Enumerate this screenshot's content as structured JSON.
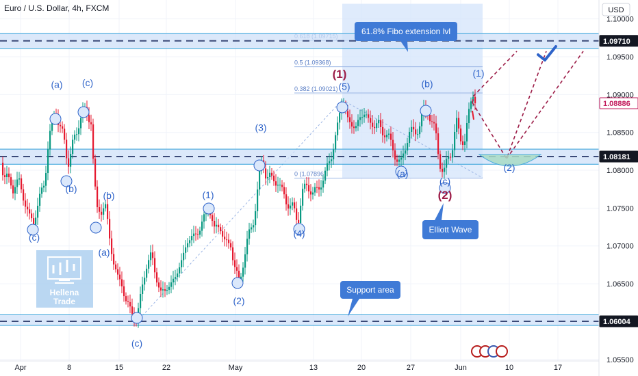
{
  "header": {
    "title": "Euro / U.S. Dollar, 4h, FXCM",
    "currency_button": "USD"
  },
  "colors": {
    "up": "#089981",
    "down": "#e5192f",
    "zone_fill": "#cfe0f8",
    "zone_line": "#2f9fd8",
    "wave_blue": "#2e63c9",
    "wave_red": "#9c1c47",
    "callout": "#3f7ad6",
    "price_tag_dark": "#131722",
    "price_tag_red": "#c2185b"
  },
  "logo": {
    "line1": "Hellena",
    "line2": "Trade"
  },
  "chart_data": {
    "type": "candlestick",
    "symbol": "EUR/USD",
    "timeframe": "4h",
    "source": "FXCM",
    "y_axis": {
      "ticks": [
        "1.10000",
        "1.09500",
        "1.09000",
        "1.08500",
        "1.08000",
        "1.07500",
        "1.07000",
        "1.06500",
        "1.06000",
        "1.05500"
      ],
      "ylim": [
        1.0548,
        1.1025
      ]
    },
    "x_axis": {
      "ticks": [
        "Apr",
        "8",
        "15",
        "22",
        "May",
        "13",
        "20",
        "27",
        "Jun",
        "10",
        "17"
      ]
    },
    "price_labels": [
      {
        "value": "1.09710",
        "style": "dark"
      },
      {
        "value": "1.08886",
        "style": "red"
      },
      {
        "value": "1.08181",
        "style": "dark"
      },
      {
        "value": "1.06004",
        "style": "dark"
      }
    ],
    "horizontal_levels": [
      {
        "price": 1.0971,
        "zone": [
          1.0961,
          1.0981
        ]
      },
      {
        "price": 1.08181,
        "zone": [
          1.0808,
          1.0828
        ]
      },
      {
        "price": 1.06004,
        "zone": [
          1.0595,
          1.0609
        ]
      }
    ],
    "fibonacci": [
      {
        "label": "0.618 (1.09715)",
        "price": 1.09715
      },
      {
        "label": "0.5 (1.09368)",
        "price": 1.09368
      },
      {
        "label": "0.382 (1.09021)",
        "price": 1.09021
      },
      {
        "label": "0 (1.07896)",
        "price": 1.07896
      }
    ],
    "wave_labels": [
      {
        "text": "(a)",
        "color": "blue",
        "price": 1.0909
      },
      {
        "text": "(c)",
        "color": "blue",
        "price": 1.0911
      },
      {
        "text": "(b)",
        "color": "blue",
        "price": 1.0771
      },
      {
        "text": "(c)",
        "color": "blue",
        "price": 1.0707
      },
      {
        "text": "(b)",
        "color": "blue",
        "price": 1.0762
      },
      {
        "text": "(a)",
        "color": "blue",
        "price": 1.0687
      },
      {
        "text": "(c)",
        "color": "blue",
        "price": 1.0567
      },
      {
        "text": "(1)",
        "color": "blue",
        "price": 1.0763
      },
      {
        "text": "(2)",
        "color": "blue",
        "price": 1.0623
      },
      {
        "text": "(3)",
        "color": "blue",
        "price": 1.0852
      },
      {
        "text": "(4)",
        "color": "blue",
        "price": 1.0712
      },
      {
        "text": "(5)",
        "color": "blue",
        "price": 1.0906
      },
      {
        "text": "(1)",
        "color": "red",
        "price": 1.0922
      },
      {
        "text": "(b)",
        "color": "blue",
        "price": 1.091
      },
      {
        "text": "(a)",
        "color": "blue",
        "price": 1.0791
      },
      {
        "text": "(c)",
        "color": "blue",
        "price": 1.0781
      },
      {
        "text": "(2)",
        "color": "red",
        "price": 1.0762
      },
      {
        "text": "(1)",
        "color": "blue",
        "price": 1.0924
      },
      {
        "text": "(2)",
        "color": "blue",
        "price": 1.0799
      }
    ],
    "callouts": [
      {
        "text": "61.8% Fibo extension lvl"
      },
      {
        "text": "Elliott Wave"
      },
      {
        "text": "Support area"
      }
    ],
    "series": [
      {
        "points": [
          [
            0,
            1.081
          ],
          [
            4,
            1.079
          ],
          [
            10,
            1.0795
          ],
          [
            18,
            1.0772
          ],
          [
            26,
            1.079
          ],
          [
            34,
            1.076
          ],
          [
            42,
            1.0738
          ],
          [
            48,
            1.0732
          ],
          [
            56,
            1.076
          ],
          [
            64,
            1.0785
          ],
          [
            70,
            1.084
          ],
          [
            76,
            1.0862
          ],
          [
            80,
            1.088
          ],
          [
            86,
            1.086
          ],
          [
            92,
            1.084
          ],
          [
            98,
            1.081
          ],
          [
            104,
            1.0832
          ],
          [
            110,
            1.0842
          ],
          [
            116,
            1.0875
          ],
          [
            120,
            1.088
          ],
          [
            126,
            1.0868
          ],
          [
            132,
            1.087
          ],
          [
            136,
            1.08
          ],
          [
            140,
            1.0742
          ],
          [
            146,
            1.0748
          ],
          [
            152,
            1.076
          ],
          [
            158,
            1.071
          ],
          [
            166,
            1.068
          ],
          [
            172,
            1.065
          ],
          [
            178,
            1.0648
          ],
          [
            184,
            1.0628
          ],
          [
            190,
            1.061
          ],
          [
            198,
            1.0604
          ],
          [
            206,
            1.064
          ],
          [
            214,
            1.068
          ],
          [
            220,
            1.069
          ],
          [
            226,
            1.066
          ],
          [
            234,
            1.064
          ],
          [
            240,
            1.064
          ],
          [
            248,
            1.065
          ],
          [
            256,
            1.066
          ],
          [
            264,
            1.068
          ],
          [
            272,
            1.0705
          ],
          [
            280,
            1.0712
          ],
          [
            290,
            1.072
          ],
          [
            296,
            1.0735
          ],
          [
            304,
            1.0754
          ],
          [
            312,
            1.072
          ],
          [
            320,
            1.073
          ],
          [
            328,
            1.07
          ],
          [
            336,
            1.0705
          ],
          [
            342,
            1.067
          ],
          [
            348,
            1.0648
          ],
          [
            354,
            1.068
          ],
          [
            362,
            1.071
          ],
          [
            370,
            1.074
          ],
          [
            378,
            1.079
          ],
          [
            382,
            1.0815
          ],
          [
            388,
            1.0795
          ],
          [
            396,
            1.0785
          ],
          [
            404,
            1.079
          ],
          [
            410,
            1.077
          ],
          [
            418,
            1.076
          ],
          [
            426,
            1.075
          ],
          [
            434,
            1.0732
          ],
          [
            440,
            1.077
          ],
          [
            448,
            1.078
          ],
          [
            456,
            1.077
          ],
          [
            464,
            1.0775
          ],
          [
            472,
            1.079
          ],
          [
            478,
            1.0808
          ],
          [
            484,
            1.082
          ],
          [
            490,
            1.085
          ],
          [
            496,
            1.088
          ],
          [
            500,
            1.0893
          ],
          [
            506,
            1.087
          ],
          [
            512,
            1.086
          ],
          [
            518,
            1.0855
          ],
          [
            524,
            1.087
          ],
          [
            532,
            1.0875
          ],
          [
            538,
            1.0865
          ],
          [
            546,
            1.0858
          ],
          [
            552,
            1.0862
          ],
          [
            558,
            1.085
          ],
          [
            566,
            1.0845
          ],
          [
            572,
            1.0832
          ],
          [
            578,
            1.0815
          ],
          [
            584,
            1.0806
          ],
          [
            590,
            1.083
          ],
          [
            596,
            1.0848
          ],
          [
            604,
            1.085
          ],
          [
            612,
            1.086
          ],
          [
            618,
            1.0875
          ],
          [
            624,
            1.0882
          ],
          [
            630,
            1.086
          ],
          [
            636,
            1.0845
          ],
          [
            640,
            1.0822
          ],
          [
            644,
            1.08
          ],
          [
            648,
            1.0795
          ],
          [
            654,
            1.082
          ],
          [
            660,
            1.0832
          ],
          [
            666,
            1.086
          ],
          [
            672,
            1.0845
          ],
          [
            678,
            1.0838
          ],
          [
            682,
            1.086
          ],
          [
            686,
            1.089
          ],
          [
            690,
            1.0905
          ],
          [
            694,
            1.0888
          ]
        ]
      }
    ]
  }
}
